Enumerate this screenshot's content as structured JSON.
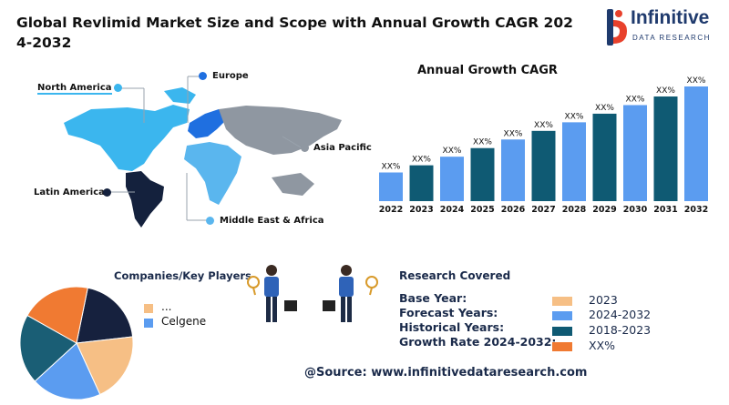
{
  "header": {
    "title": "Global Revlimid Market Size and Scope with Annual Growth CAGR 2024-2032"
  },
  "logo": {
    "name": "Infinitive",
    "subtitle": "DATA RESEARCH"
  },
  "map": {
    "regions": [
      {
        "label": "North America",
        "color": "#3bb6ee"
      },
      {
        "label": "Europe",
        "color": "#1f6fe0"
      },
      {
        "label": "Asia Pacific",
        "color": "#8f97a1"
      },
      {
        "label": "Latin America",
        "color": "#14213d"
      },
      {
        "label": "Middle East & Africa",
        "color": "#5ab6ee"
      }
    ]
  },
  "chart_data": [
    {
      "type": "bar",
      "title": "Annual Growth CAGR",
      "categories": [
        "2022",
        "2023",
        "2024",
        "2025",
        "2026",
        "2027",
        "2028",
        "2029",
        "2030",
        "2031",
        "2032"
      ],
      "values": [
        2,
        2.5,
        3.1,
        3.7,
        4.3,
        4.9,
        5.5,
        6.1,
        6.7,
        7.3,
        8.0
      ],
      "data_labels": [
        "XX%",
        "XX%",
        "XX%",
        "XX%",
        "XX%",
        "XX%",
        "XX%",
        "XX%",
        "XX%",
        "XX%",
        "XX%"
      ],
      "colors": [
        "#5b9cf0",
        "#0f5a73",
        "#5b9cf0",
        "#0f5a73",
        "#5b9cf0",
        "#0f5a73",
        "#5b9cf0",
        "#0f5a73",
        "#5b9cf0",
        "#0f5a73",
        "#5b9cf0"
      ]
    },
    {
      "type": "pie",
      "title": "Companies/Key Players",
      "slices": [
        {
          "value": 20,
          "color": "#16213e"
        },
        {
          "value": 20,
          "color": "#f6bf85"
        },
        {
          "value": 20,
          "color": "#5b9cf0"
        },
        {
          "value": 20,
          "color": "#1a5e75"
        },
        {
          "value": 20,
          "color": "#f07a32"
        }
      ],
      "legend": [
        {
          "label": "...",
          "color": "#f6bf85"
        },
        {
          "label": "Celgene",
          "color": "#5b9cf0"
        }
      ]
    }
  ],
  "research": {
    "title": "Research Covered",
    "rows": [
      {
        "label": "Base Year:",
        "value": "2023",
        "color": "#f6bf85"
      },
      {
        "label": "Forecast Years:",
        "value": "2024-2032",
        "color": "#5b9cf0"
      },
      {
        "label": "Historical Years:",
        "value": "2018-2023",
        "color": "#0f5a73"
      },
      {
        "label": "Growth Rate 2024-2032:",
        "value": "XX%",
        "color": "#f07a32"
      }
    ]
  },
  "source": "@Source: www.infinitivedataresearch.com"
}
